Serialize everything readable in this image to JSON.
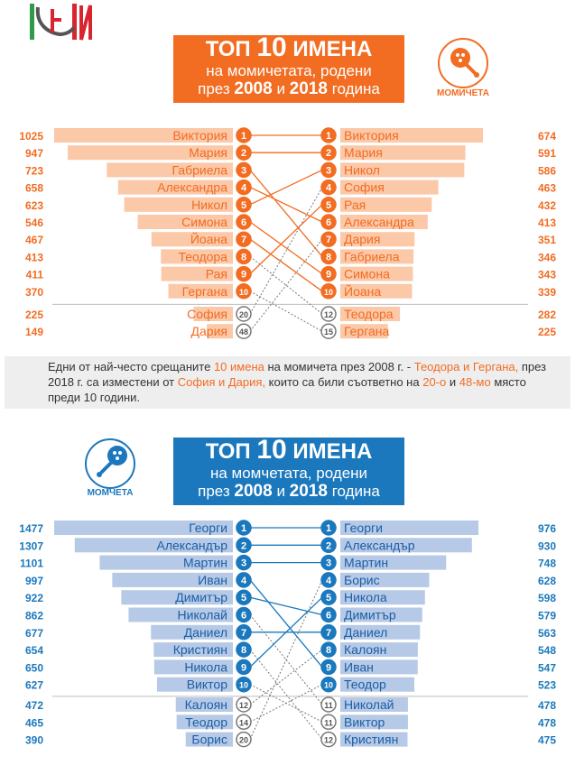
{
  "girls": {
    "title_line1": "ТОП",
    "title_num": "10",
    "title_line1b": "ИМЕНА",
    "title_line2": "на момичетата, родени",
    "title_line3a": "през",
    "year1": "2008",
    "title_and": "и",
    "year2": "2018",
    "title_line3b": "година",
    "badge": "МОМИЧЕТА",
    "accent": "#f26c22",
    "bar": "#fbc8a8",
    "name_color": "#f26c22"
  },
  "boys": {
    "title_line1": "ТОП",
    "title_num": "10",
    "title_line1b": "ИМЕНА",
    "title_line2": "на момчетата, родени",
    "title_line3a": "през",
    "year1": "2008",
    "title_and": "и",
    "year2": "2018",
    "title_line3b": "година",
    "badge": "МОМЧЕТА",
    "accent": "#1b78bd",
    "bar": "#b6c9e7",
    "name_color": "#1b5fa5"
  },
  "note": {
    "p1": "Едни от най-често срещаните ",
    "h1": "10 имена",
    "p2": " на момичета през 2008 г. - ",
    "h2": "Теодора и Гергана,",
    "p3": " през 2018 г. са изместени от ",
    "h3": "София и Дария,",
    "p4": " които са били съответно на ",
    "h4": "20-о",
    "p5": " и ",
    "h5": "48-мо",
    "p6": " място преди 10 години."
  },
  "chart_data": [
    {
      "type": "bar",
      "group": "girls",
      "left": [
        {
          "name": "Виктория",
          "value": 1025,
          "rank": "1"
        },
        {
          "name": "Мария",
          "value": 947,
          "rank": "2"
        },
        {
          "name": "Габриела",
          "value": 723,
          "rank": "3"
        },
        {
          "name": "Александра",
          "value": 658,
          "rank": "4"
        },
        {
          "name": "Никол",
          "value": 623,
          "rank": "5"
        },
        {
          "name": "Симона",
          "value": 546,
          "rank": "6"
        },
        {
          "name": "Йоана",
          "value": 467,
          "rank": "7"
        },
        {
          "name": "Теодора",
          "value": 413,
          "rank": "8"
        },
        {
          "name": "Рая",
          "value": 411,
          "rank": "9"
        },
        {
          "name": "Гергана",
          "value": 370,
          "rank": "10"
        },
        {
          "name": "София",
          "value": 225,
          "rank": "20"
        },
        {
          "name": "Дария",
          "value": 149,
          "rank": "48"
        }
      ],
      "right": [
        {
          "name": "Виктория",
          "value": 674,
          "rank": "1"
        },
        {
          "name": "Мария",
          "value": 591,
          "rank": "2"
        },
        {
          "name": "Никол",
          "value": 586,
          "rank": "3"
        },
        {
          "name": "София",
          "value": 463,
          "rank": "4"
        },
        {
          "name": "Рая",
          "value": 432,
          "rank": "5"
        },
        {
          "name": "Александра",
          "value": 413,
          "rank": "6"
        },
        {
          "name": "Дария",
          "value": 351,
          "rank": "7"
        },
        {
          "name": "Габриела",
          "value": 346,
          "rank": "8"
        },
        {
          "name": "Симона",
          "value": 343,
          "rank": "9"
        },
        {
          "name": "Йоана",
          "value": 339,
          "rank": "10"
        },
        {
          "name": "Теодора",
          "value": 282,
          "rank": "12"
        },
        {
          "name": "Гергана",
          "value": 225,
          "rank": "15"
        }
      ]
    },
    {
      "type": "bar",
      "group": "boys",
      "left": [
        {
          "name": "Георги",
          "value": 1477,
          "rank": "1"
        },
        {
          "name": "Александър",
          "value": 1307,
          "rank": "2"
        },
        {
          "name": "Мартин",
          "value": 1101,
          "rank": "3"
        },
        {
          "name": "Иван",
          "value": 997,
          "rank": "4"
        },
        {
          "name": "Димитър",
          "value": 922,
          "rank": "5"
        },
        {
          "name": "Николай",
          "value": 862,
          "rank": "6"
        },
        {
          "name": "Даниел",
          "value": 677,
          "rank": "7"
        },
        {
          "name": "Кристиян",
          "value": 654,
          "rank": "8"
        },
        {
          "name": "Никола",
          "value": 650,
          "rank": "9"
        },
        {
          "name": "Виктор",
          "value": 627,
          "rank": "10"
        },
        {
          "name": "Калоян",
          "value": 472,
          "rank": "12"
        },
        {
          "name": "Теодор",
          "value": 465,
          "rank": "14"
        },
        {
          "name": "Борис",
          "value": 390,
          "rank": "20"
        }
      ],
      "right": [
        {
          "name": "Георги",
          "value": 976,
          "rank": "1"
        },
        {
          "name": "Александър",
          "value": 930,
          "rank": "2"
        },
        {
          "name": "Мартин",
          "value": 748,
          "rank": "3"
        },
        {
          "name": "Борис",
          "value": 628,
          "rank": "4"
        },
        {
          "name": "Никола",
          "value": 598,
          "rank": "5"
        },
        {
          "name": "Димитър",
          "value": 579,
          "rank": "6"
        },
        {
          "name": "Даниел",
          "value": 563,
          "rank": "7"
        },
        {
          "name": "Калоян",
          "value": 548,
          "rank": "8"
        },
        {
          "name": "Иван",
          "value": 547,
          "rank": "9"
        },
        {
          "name": "Теодор",
          "value": 523,
          "rank": "10"
        },
        {
          "name": "Николай",
          "value": 478,
          "rank": "11"
        },
        {
          "name": "Виктор",
          "value": 478,
          "rank": "11"
        },
        {
          "name": "Кристиян",
          "value": 475,
          "rank": "12"
        }
      ]
    }
  ]
}
